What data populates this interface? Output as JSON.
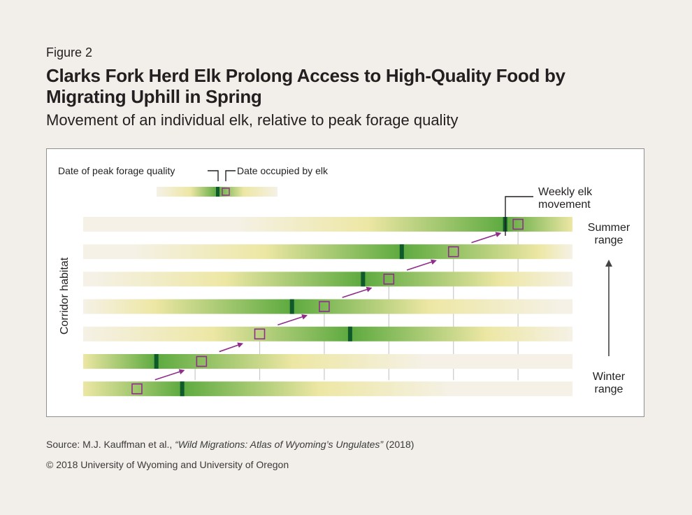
{
  "figure_label": "Figure 2",
  "title": "Clarks Fork Herd Elk Prolong Access to High-Quality Food by Migrating Uphill in Spring",
  "subtitle": "Movement of an individual elk, relative to peak forage quality",
  "legend": {
    "peak_label": "Date of peak forage quality",
    "occupied_label": "Date occupied by elk"
  },
  "annotation": {
    "line1": "Weekly elk",
    "line2": "movement"
  },
  "axis_label": "Corridor habitat",
  "summer_range": {
    "line1": "Summer",
    "line2": "range"
  },
  "winter_range": {
    "line1": "Winter",
    "line2": "range"
  },
  "colors": {
    "light": "#f5f1e6",
    "yellow": "#ede7a4",
    "green": "#5daa3f",
    "dark_marker": "#0e5a2a",
    "elk_marker": "#8e2e8a",
    "grid": "#c9c9c9"
  },
  "chart_data": {
    "type": "diagram",
    "weeks": 7,
    "bands_top_to_bottom": [
      {
        "peak_week": 7.1,
        "elk_week": 7.3
      },
      {
        "peak_week": 5.5,
        "elk_week": 6.3
      },
      {
        "peak_week": 4.9,
        "elk_week": 5.3
      },
      {
        "peak_week": 3.8,
        "elk_week": 4.3
      },
      {
        "peak_week": 4.7,
        "elk_week": 3.3
      },
      {
        "peak_week": 1.7,
        "elk_week": 2.4
      },
      {
        "peak_week": 2.1,
        "elk_week": 1.4
      }
    ]
  },
  "source_prefix": "Source: M.J. Kauffman et al., ",
  "source_title": "“Wild Migrations: Atlas of Wyoming’s Ungulates”",
  "source_year": " (2018)",
  "copyright": "© 2018 University of Wyoming and University of Oregon"
}
